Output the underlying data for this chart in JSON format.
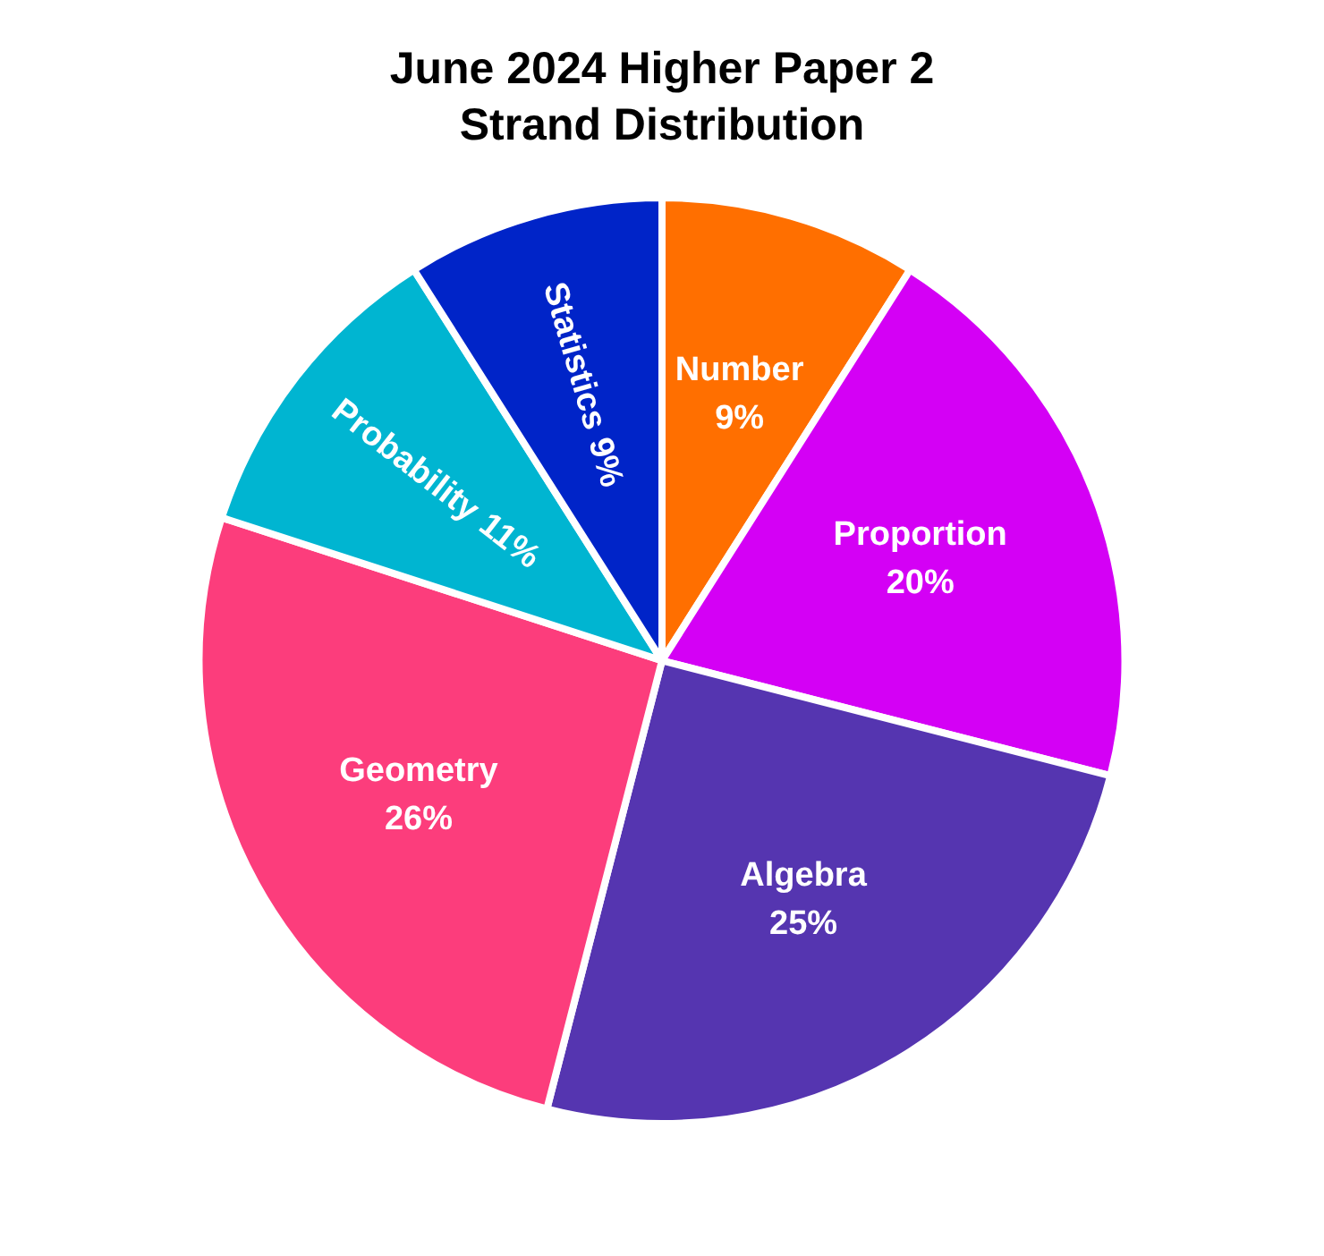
{
  "chart_data": {
    "type": "pie",
    "title": "June 2024 Higher Paper 2\nStrand Distribution",
    "categories": [
      "Number",
      "Proportion",
      "Algebra",
      "Geometry",
      "Probability",
      "Statistics"
    ],
    "values": [
      9,
      20,
      25,
      26,
      11,
      9
    ],
    "colors": [
      "#ff6f00",
      "#d400f5",
      "#5535b0",
      "#fc3d7c",
      "#00b5d1",
      "#0024c8"
    ],
    "value_labels": [
      "9%",
      "20%",
      "25%",
      "26%",
      "11%",
      "9%"
    ],
    "legend": false
  }
}
